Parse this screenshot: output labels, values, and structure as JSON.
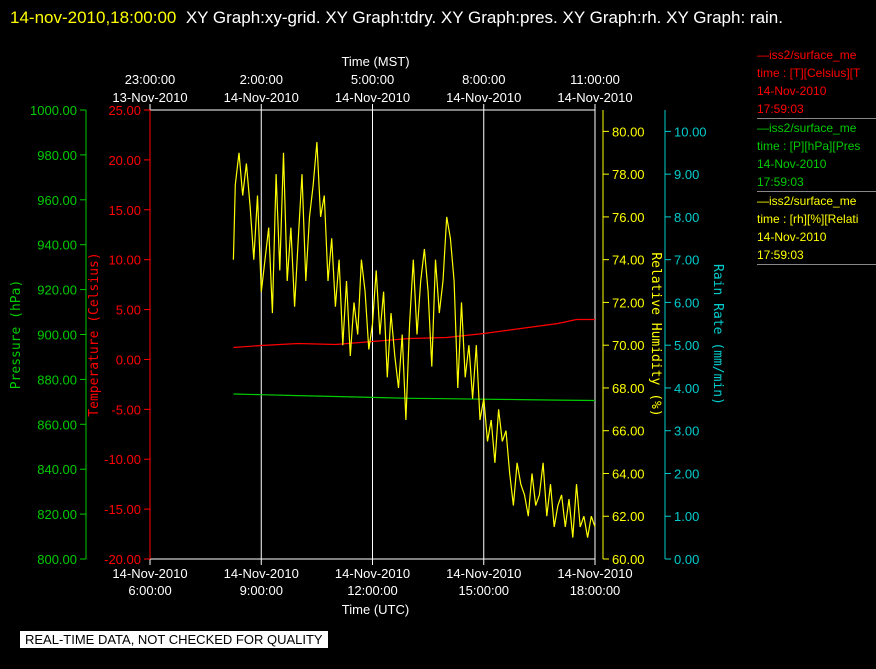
{
  "header": {
    "date": "14-nov-2010,18:00:00",
    "graphs": "XY Graph:xy-grid.  XY Graph:tdry.  XY Graph:pres.  XY Graph:rh.  XY Graph: rain."
  },
  "disclaimer": "REAL-TIME DATA, NOT CHECKED FOR QUALITY",
  "colors": {
    "temperature": "#ff0000",
    "pressure": "#00cc00",
    "humidity": "#ffff00",
    "rain": "#00cccc",
    "grid": "#ffffff"
  },
  "legend": [
    {
      "name": "—iss2/surface_me",
      "field": "time : [T][Celsius][T",
      "date": "14-Nov-2010",
      "time": "17:59:03",
      "color": "#ff0000"
    },
    {
      "name": "—iss2/surface_me",
      "field": "time : [P][hPa][Pres",
      "date": "14-Nov-2010",
      "time": "17:59:03",
      "color": "#00cc00"
    },
    {
      "name": "—iss2/surface_me",
      "field": "time : [rh][%][Relati",
      "date": "14-Nov-2010",
      "time": "17:59:03",
      "color": "#ffff00"
    }
  ],
  "chart_data": {
    "type": "line",
    "grid": true,
    "x_top_title": "Time (MST)",
    "x_bottom_title": "Time (UTC)",
    "xlim": [
      "14-Nov-2010 06:00",
      "14-Nov-2010 18:00"
    ],
    "x_bottom_ticks": [
      {
        "date": "14-Nov-2010",
        "time": "6:00:00"
      },
      {
        "date": "14-Nov-2010",
        "time": "9:00:00"
      },
      {
        "date": "14-Nov-2010",
        "time": "12:00:00"
      },
      {
        "date": "14-Nov-2010",
        "time": "15:00:00"
      },
      {
        "date": "14-Nov-2010",
        "time": "18:00:00"
      }
    ],
    "x_top_ticks": [
      {
        "time": "23:00:00",
        "date": "13-Nov-2010"
      },
      {
        "time": "2:00:00",
        "date": "14-Nov-2010"
      },
      {
        "time": "5:00:00",
        "date": "14-Nov-2010"
      },
      {
        "time": "8:00:00",
        "date": "14-Nov-2010"
      },
      {
        "time": "11:00:00",
        "date": "14-Nov-2010"
      }
    ],
    "axes": {
      "pressure": {
        "label": "Pressure (hPa)",
        "ylim": [
          800,
          1000
        ],
        "ticks": [
          "800.00",
          "820.00",
          "840.00",
          "860.00",
          "880.00",
          "900.00",
          "920.00",
          "940.00",
          "960.00",
          "980.00",
          "1000.00"
        ]
      },
      "temperature": {
        "label": "Temperature (Celsius)",
        "ylim": [
          -20,
          25
        ],
        "ticks": [
          "-20.00",
          "-15.00",
          "-10.00",
          "-5.00",
          "0.00",
          "5.00",
          "10.00",
          "15.00",
          "20.00",
          "25.00"
        ]
      },
      "humidity": {
        "label": "Relative Humidity (%)",
        "ylim": [
          60,
          81
        ],
        "ticks": [
          "60.00",
          "62.00",
          "64.00",
          "66.00",
          "68.00",
          "70.00",
          "72.00",
          "74.00",
          "76.00",
          "78.00",
          "80.00"
        ]
      },
      "rain": {
        "label": "Rain Rate (mm/min)",
        "ylim": [
          0,
          10.5
        ],
        "ticks": [
          "0.00",
          "1.00",
          "2.00",
          "3.00",
          "4.00",
          "5.00",
          "6.00",
          "7.00",
          "8.00",
          "9.00",
          "10.00"
        ]
      }
    },
    "series": [
      {
        "name": "T",
        "axis": "temperature",
        "x": [
          8.25,
          9.0,
          10.0,
          11.0,
          12.0,
          13.0,
          14.0,
          15.0,
          16.0,
          17.0,
          17.5,
          18.0
        ],
        "y": [
          1.2,
          1.4,
          1.6,
          1.5,
          1.8,
          2.1,
          2.2,
          2.6,
          3.1,
          3.6,
          4.0,
          4.0
        ]
      },
      {
        "name": "P",
        "axis": "pressure",
        "x": [
          8.25,
          9.0,
          10.0,
          11.0,
          12.0,
          13.0,
          14.0,
          15.0,
          16.0,
          17.0,
          18.0
        ],
        "y": [
          873.5,
          873.2,
          872.8,
          872.4,
          872.0,
          871.6,
          871.4,
          871.2,
          871.0,
          870.8,
          870.6
        ]
      },
      {
        "name": "rh",
        "axis": "humidity",
        "x": [
          8.25,
          8.3,
          8.4,
          8.5,
          8.6,
          8.7,
          8.8,
          8.9,
          9.0,
          9.1,
          9.2,
          9.3,
          9.4,
          9.5,
          9.6,
          9.7,
          9.8,
          9.9,
          10.0,
          10.1,
          10.2,
          10.3,
          10.4,
          10.5,
          10.6,
          10.7,
          10.8,
          10.9,
          11.0,
          11.1,
          11.2,
          11.3,
          11.4,
          11.5,
          11.6,
          11.7,
          11.8,
          11.9,
          12.0,
          12.1,
          12.2,
          12.3,
          12.4,
          12.5,
          12.6,
          12.7,
          12.8,
          12.9,
          13.0,
          13.1,
          13.2,
          13.3,
          13.4,
          13.5,
          13.6,
          13.7,
          13.8,
          13.9,
          14.0,
          14.1,
          14.2,
          14.3,
          14.4,
          14.5,
          14.6,
          14.7,
          14.8,
          14.9,
          15.0,
          15.1,
          15.2,
          15.3,
          15.4,
          15.5,
          15.6,
          15.7,
          15.8,
          15.9,
          16.0,
          16.1,
          16.2,
          16.3,
          16.4,
          16.5,
          16.6,
          16.7,
          16.8,
          16.9,
          17.0,
          17.1,
          17.2,
          17.3,
          17.4,
          17.5,
          17.6,
          17.7,
          17.8,
          17.9,
          18.0
        ],
        "y": [
          74.0,
          77.5,
          79.0,
          77.0,
          78.5,
          76.5,
          74.0,
          77.0,
          72.5,
          74.0,
          75.5,
          71.5,
          78.0,
          73.5,
          79.0,
          73.0,
          75.5,
          71.8,
          75.0,
          78.0,
          73.0,
          76.0,
          77.5,
          79.5,
          76.0,
          77.0,
          73.0,
          75.0,
          71.8,
          74.0,
          70.0,
          73.0,
          69.5,
          72.0,
          70.5,
          74.0,
          72.5,
          69.8,
          71.0,
          73.5,
          70.5,
          72.5,
          68.5,
          71.5,
          69.5,
          68.0,
          70.5,
          66.5,
          71.0,
          74.0,
          70.5,
          73.0,
          74.5,
          72.5,
          69.0,
          74.0,
          71.5,
          73.0,
          76.0,
          75.0,
          73.0,
          68.0,
          72.0,
          68.5,
          70.0,
          67.5,
          70.0,
          66.5,
          67.5,
          65.5,
          66.5,
          64.5,
          67.0,
          65.5,
          66.0,
          64.0,
          62.5,
          64.5,
          63.5,
          63.0,
          62.0,
          64.0,
          62.5,
          63.0,
          64.5,
          62.0,
          63.5,
          61.5,
          62.5,
          63.0,
          61.5,
          62.8,
          61.0,
          63.5,
          61.5,
          62.0,
          61.0,
          62.0,
          61.5
        ]
      }
    ]
  }
}
